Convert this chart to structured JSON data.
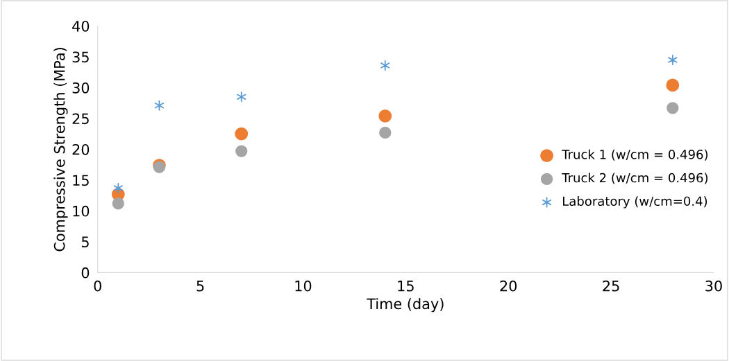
{
  "chart_data": {
    "type": "scatter",
    "xlabel": "Time (day)",
    "ylabel": "Compressive Strength (MPa)",
    "x": [
      1,
      3,
      7,
      14,
      28
    ],
    "series": [
      {
        "name": "Truck 1 (w/cm = 0.496)",
        "color": "#ed7d31",
        "marker": "circle",
        "values": [
          12.7,
          17.4,
          22.5,
          25.4,
          30.4
        ]
      },
      {
        "name": "Truck 2 (w/cm = 0.496)",
        "color": "#a5a5a5",
        "marker": "circle",
        "values": [
          11.2,
          17.1,
          19.7,
          22.7,
          26.7
        ]
      },
      {
        "name": "Laboratory (w/cm=0.4)",
        "color": "#5b9bd5",
        "marker": "cross",
        "values": [
          13.7,
          27.1,
          28.5,
          33.6,
          34.5
        ]
      }
    ],
    "xlim": [
      0,
      30
    ],
    "xticks": [
      0,
      5,
      10,
      15,
      20,
      25,
      30
    ],
    "ylim": [
      0,
      40
    ],
    "yticks": [
      0,
      5,
      10,
      15,
      20,
      25,
      30,
      35,
      40
    ],
    "grid": false,
    "legend": "right"
  }
}
